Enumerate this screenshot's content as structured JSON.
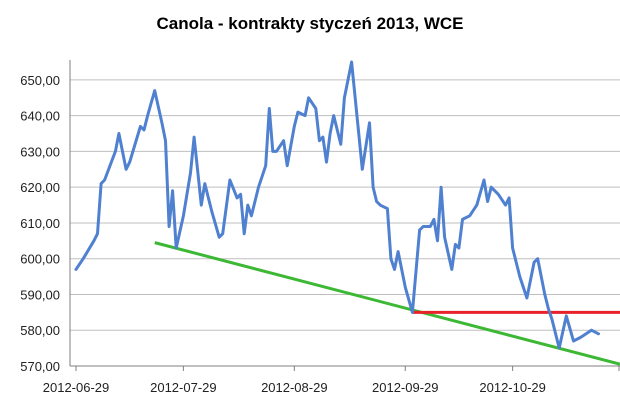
{
  "chart_data": {
    "type": "line",
    "title": "Canola - kontrakty styczeń 2013, WCE",
    "xlabel": "",
    "ylabel": "",
    "ylim": [
      570,
      655
    ],
    "y_ticks": [
      "570,00",
      "580,00",
      "590,00",
      "600,00",
      "610,00",
      "620,00",
      "630,00",
      "640,00",
      "650,00"
    ],
    "y_tick_values": [
      570,
      580,
      590,
      600,
      610,
      620,
      630,
      640,
      650
    ],
    "x_ticks": [
      "2012-06-29",
      "2012-07-29",
      "2012-08-29",
      "2012-09-29",
      "2012-10-29"
    ],
    "x_tick_values": [
      "2012-06-29",
      "2012-07-29",
      "2012-08-29",
      "2012-09-29",
      "2012-10-29"
    ],
    "xlim": [
      "2012-06-29",
      "2012-11-28"
    ],
    "grid": "horizontal",
    "legend": "none",
    "series": [
      {
        "color": "#4f81d0",
        "points": [
          [
            "2012-06-29",
            597
          ],
          [
            "2012-07-01",
            600
          ],
          [
            "2012-07-04",
            605
          ],
          [
            "2012-07-05",
            607
          ],
          [
            "2012-07-06",
            621
          ],
          [
            "2012-07-07",
            622
          ],
          [
            "2012-07-10",
            630
          ],
          [
            "2012-07-11",
            635
          ],
          [
            "2012-07-13",
            625
          ],
          [
            "2012-07-14",
            627
          ],
          [
            "2012-07-17",
            637
          ],
          [
            "2012-07-18",
            636
          ],
          [
            "2012-07-19",
            640
          ],
          [
            "2012-07-21",
            647
          ],
          [
            "2012-07-23",
            638
          ],
          [
            "2012-07-24",
            633
          ],
          [
            "2012-07-25",
            609
          ],
          [
            "2012-07-26",
            619
          ],
          [
            "2012-07-27",
            603
          ],
          [
            "2012-07-29",
            612
          ],
          [
            "2012-07-31",
            624
          ],
          [
            "2012-08-01",
            634
          ],
          [
            "2012-08-03",
            615
          ],
          [
            "2012-08-04",
            621
          ],
          [
            "2012-08-06",
            613
          ],
          [
            "2012-08-08",
            606
          ],
          [
            "2012-08-09",
            607
          ],
          [
            "2012-08-11",
            622
          ],
          [
            "2012-08-13",
            617
          ],
          [
            "2012-08-14",
            618
          ],
          [
            "2012-08-15",
            607
          ],
          [
            "2012-08-16",
            615
          ],
          [
            "2012-08-17",
            612
          ],
          [
            "2012-08-19",
            620
          ],
          [
            "2012-08-21",
            626
          ],
          [
            "2012-08-22",
            642
          ],
          [
            "2012-08-23",
            630
          ],
          [
            "2012-08-24",
            630
          ],
          [
            "2012-08-26",
            633
          ],
          [
            "2012-08-27",
            626
          ],
          [
            "2012-08-29",
            637
          ],
          [
            "2012-08-30",
            641
          ],
          [
            "2012-09-01",
            640
          ],
          [
            "2012-09-02",
            645
          ],
          [
            "2012-09-04",
            642
          ],
          [
            "2012-09-05",
            633
          ],
          [
            "2012-09-06",
            634
          ],
          [
            "2012-09-07",
            627
          ],
          [
            "2012-09-08",
            635
          ],
          [
            "2012-09-09",
            640
          ],
          [
            "2012-09-11",
            632
          ],
          [
            "2012-09-12",
            645
          ],
          [
            "2012-09-14",
            655
          ],
          [
            "2012-09-17",
            625
          ],
          [
            "2012-09-19",
            638
          ],
          [
            "2012-09-20",
            620
          ],
          [
            "2012-09-21",
            616
          ],
          [
            "2012-09-22",
            615
          ],
          [
            "2012-09-24",
            614
          ],
          [
            "2012-09-25",
            600
          ],
          [
            "2012-09-26",
            597
          ],
          [
            "2012-09-27",
            602
          ],
          [
            "2012-09-29",
            592
          ],
          [
            "2012-10-01",
            585
          ],
          [
            "2012-10-03",
            608
          ],
          [
            "2012-10-04",
            609
          ],
          [
            "2012-10-06",
            609
          ],
          [
            "2012-10-07",
            611
          ],
          [
            "2012-10-08",
            605
          ],
          [
            "2012-10-09",
            620
          ],
          [
            "2012-10-10",
            606
          ],
          [
            "2012-10-12",
            597
          ],
          [
            "2012-10-13",
            604
          ],
          [
            "2012-10-14",
            603
          ],
          [
            "2012-10-15",
            611
          ],
          [
            "2012-10-17",
            612
          ],
          [
            "2012-10-19",
            615
          ],
          [
            "2012-10-21",
            622
          ],
          [
            "2012-10-22",
            616
          ],
          [
            "2012-10-23",
            620
          ],
          [
            "2012-10-25",
            618
          ],
          [
            "2012-10-27",
            615
          ],
          [
            "2012-10-28",
            617
          ],
          [
            "2012-10-29",
            603
          ],
          [
            "2012-10-31",
            595
          ],
          [
            "2012-11-02",
            589
          ],
          [
            "2012-11-04",
            599
          ],
          [
            "2012-11-05",
            600
          ],
          [
            "2012-11-07",
            590
          ],
          [
            "2012-11-08",
            586
          ],
          [
            "2012-11-09",
            583
          ],
          [
            "2012-11-11",
            575
          ],
          [
            "2012-11-13",
            584
          ],
          [
            "2012-11-15",
            577
          ],
          [
            "2012-11-17",
            578
          ],
          [
            "2012-11-20",
            580
          ],
          [
            "2012-11-22",
            579
          ]
        ]
      }
    ],
    "annotations": [
      {
        "type": "trendline",
        "color": "#3cb834",
        "from": [
          "2012-07-21",
          604.5
        ],
        "to": [
          "2012-11-28",
          570.5
        ]
      },
      {
        "type": "hline",
        "color": "#e8222b",
        "from": [
          "2012-10-01",
          585
        ],
        "to": [
          "2012-11-28",
          585
        ]
      }
    ]
  }
}
